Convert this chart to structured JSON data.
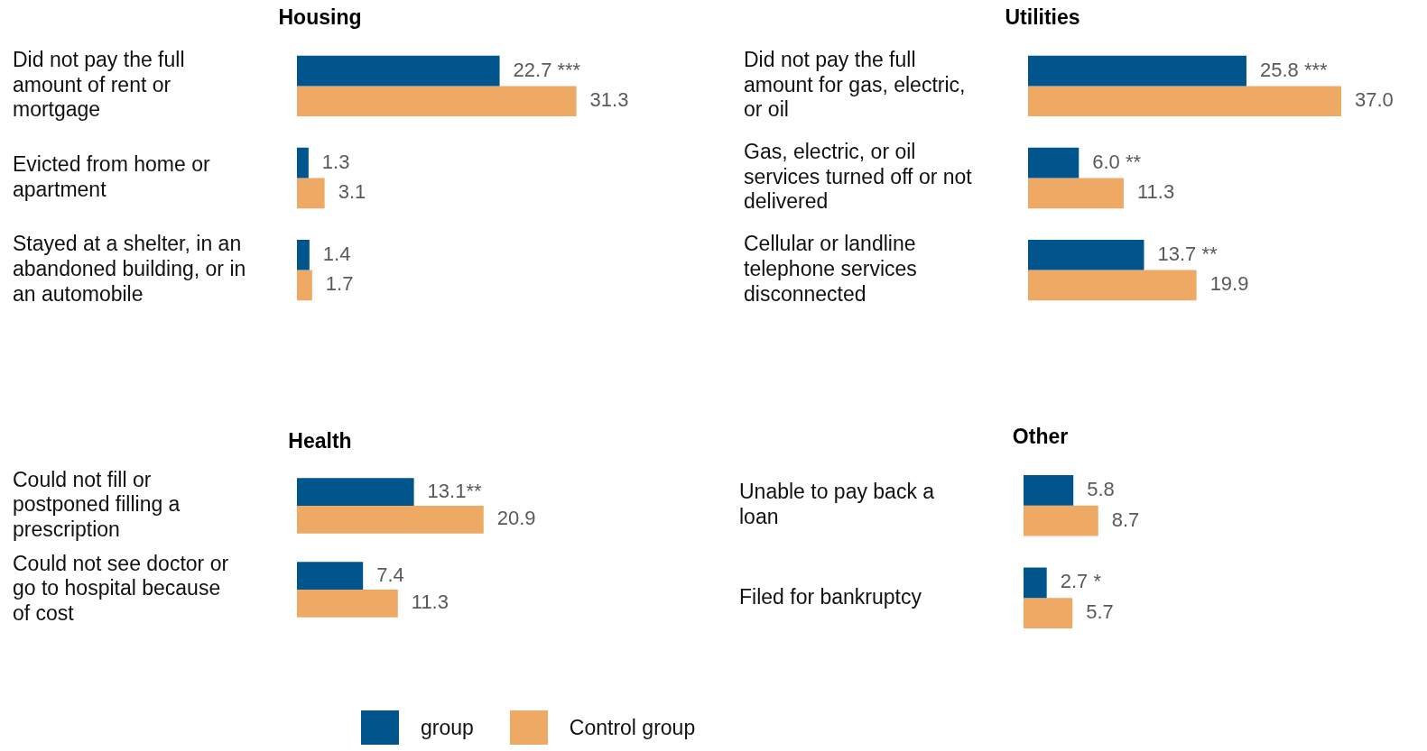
{
  "chart_data": [
    {
      "type": "bar",
      "orientation": "horizontal",
      "title": "Housing",
      "categories": [
        "Did not pay the full amount of rent or mortgage",
        "Evicted from home or apartment",
        "Stayed at a shelter, in an abandoned building, or in an automobile"
      ],
      "tick_labels": "y",
      "grid": false,
      "legend": "bottom",
      "series": [
        {
          "name": "group",
          "color": "#00558c",
          "values": [
            22.7,
            1.3,
            1.4
          ],
          "value_labels": [
            "22.7 ***",
            "1.3",
            "1.4"
          ]
        },
        {
          "name": "Control group",
          "color": "#eea964",
          "values": [
            31.3,
            3.1,
            1.7
          ],
          "value_labels": [
            "31.3",
            "3.1",
            "1.7"
          ]
        }
      ]
    },
    {
      "type": "bar",
      "orientation": "horizontal",
      "title": "Utilities",
      "categories": [
        "Did not pay the full amount for gas, electric, or oil",
        "Gas, electric, or oil services turned off or not delivered",
        "Cellular or landline telephone services disconnected"
      ],
      "tick_labels": "y",
      "grid": false,
      "series": [
        {
          "color": "#00558c",
          "values": [
            25.8,
            6.0,
            13.7
          ],
          "value_labels": [
            "25.8 ***",
            "6.0 **",
            "13.7 **"
          ]
        },
        {
          "color": "#eea964",
          "values": [
            37.0,
            11.3,
            19.9
          ],
          "value_labels": [
            "37.0",
            "11.3",
            "19.9"
          ]
        }
      ]
    },
    {
      "type": "bar",
      "orientation": "horizontal",
      "title": "Health",
      "categories": [
        "Could not fill or postponed filling a prescription",
        "Could not see doctor or go to hospital because of cost"
      ],
      "tick_labels": "y",
      "grid": false,
      "series": [
        {
          "color": "#00558c",
          "values": [
            13.1,
            7.4
          ],
          "value_labels": [
            "13.1**",
            "7.4"
          ]
        },
        {
          "color": "#eea964",
          "values": [
            20.9,
            11.3
          ],
          "value_labels": [
            "20.9",
            "11.3"
          ]
        }
      ]
    },
    {
      "type": "bar",
      "orientation": "horizontal",
      "title": "Other",
      "categories": [
        "Unable to pay back a loan",
        "Filed for bankruptcy"
      ],
      "tick_labels": "y",
      "grid": false,
      "series": [
        {
          "color": "#00558c",
          "values": [
            5.8,
            2.7
          ],
          "value_labels": [
            "5.8",
            "2.7 *"
          ]
        },
        {
          "color": "#eea964",
          "values": [
            8.7,
            5.7
          ],
          "value_labels": [
            "8.7",
            "5.7"
          ]
        }
      ]
    }
  ]
}
